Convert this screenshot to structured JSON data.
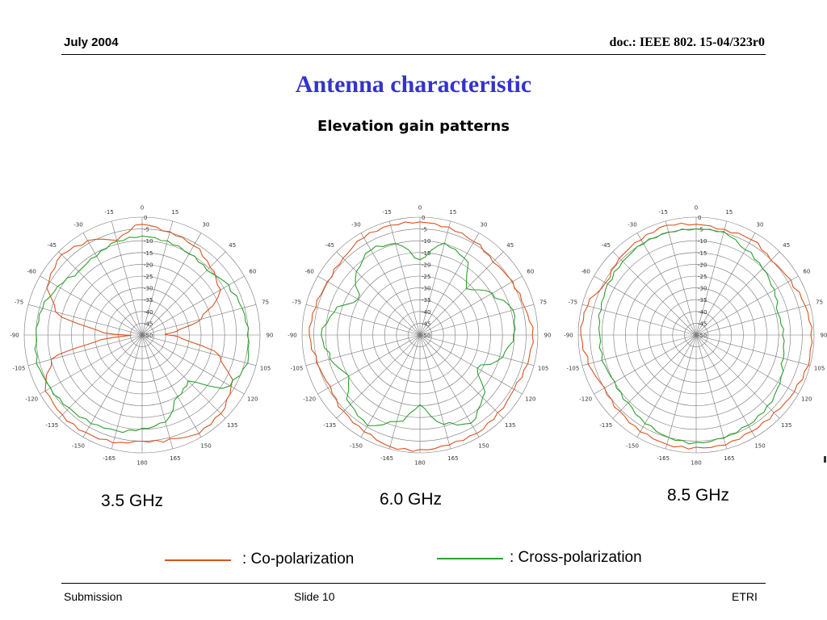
{
  "header": {
    "date": "July 2004",
    "doc": "doc.: IEEE 802. 15-04/323r0"
  },
  "title": "Antenna characteristic",
  "subtitle": "Elevation gain patterns",
  "legend": {
    "co": {
      "label": ": Co-polarization",
      "color": "#d9531e"
    },
    "cross": {
      "label": ": Cross-polarization",
      "color": "#2ca02c"
    }
  },
  "footer": {
    "left": "Submission",
    "center": "Slide 10",
    "right": "ETRI"
  },
  "chart_data": [
    {
      "type": "polar-line",
      "caption": "3.5 GHz",
      "angle_labels": [
        "0",
        "15",
        "30",
        "45",
        "60",
        "75",
        "90",
        "105",
        "120",
        "135",
        "150",
        "165",
        "180",
        "-165",
        "-150",
        "-135",
        "-120",
        "-105",
        "-90",
        "-75",
        "-60",
        "-45",
        "-30",
        "-15"
      ],
      "radial_labels": [
        "0",
        "-5",
        "-10",
        "-15",
        "-20",
        "-25",
        "-30",
        "-35",
        "-40",
        "-45",
        "-50"
      ],
      "rlim": [
        -50,
        0
      ],
      "series": [
        {
          "key": "co",
          "angles": [
            0,
            15,
            30,
            45,
            60,
            75,
            82,
            88,
            95,
            105,
            120,
            135,
            150,
            165,
            180,
            195,
            210,
            225,
            240,
            255,
            262,
            268,
            275,
            285,
            300,
            315,
            330,
            345
          ],
          "values": [
            -3,
            -5,
            -6,
            -9,
            -12,
            -24,
            -34,
            -40,
            -33,
            -16,
            -6,
            -3,
            -2,
            -4,
            -5,
            -3,
            -2,
            -2,
            -3,
            -10,
            -30,
            -45,
            -32,
            -12,
            -4,
            -2,
            -4,
            -8
          ]
        },
        {
          "key": "cross",
          "angles": [
            0,
            15,
            30,
            45,
            60,
            75,
            90,
            105,
            120,
            135,
            150,
            165,
            180,
            195,
            210,
            225,
            240,
            255,
            270,
            285,
            300,
            315,
            330,
            345
          ],
          "values": [
            -8,
            -9,
            -10,
            -11,
            -8,
            -6,
            -5,
            -4,
            -7,
            -22,
            -20,
            -12,
            -10,
            -8,
            -7,
            -6,
            -5,
            -4,
            -5,
            -6,
            -9,
            -12,
            -11,
            -9
          ]
        }
      ]
    },
    {
      "type": "polar-line",
      "caption": "6.0 GHz",
      "angle_labels": [
        "0",
        "15",
        "30",
        "45",
        "60",
        "75",
        "90",
        "105",
        "120",
        "135",
        "150",
        "165",
        "180",
        "-165",
        "-150",
        "-135",
        "-120",
        "-105",
        "-90",
        "-75",
        "-60",
        "-45",
        "-30",
        "-15"
      ],
      "radial_labels": [
        "0",
        "-5",
        "-10",
        "-15",
        "-20",
        "-25",
        "-30",
        "-35",
        "-40",
        "-45",
        "-50"
      ],
      "rlim": [
        -50,
        0
      ],
      "series": [
        {
          "key": "co",
          "angles": [
            0,
            15,
            30,
            45,
            60,
            75,
            90,
            105,
            120,
            135,
            150,
            165,
            180,
            195,
            210,
            225,
            240,
            255,
            270,
            285,
            300,
            315,
            330,
            345
          ],
          "values": [
            -2,
            -3,
            -4,
            -6,
            -5,
            -4,
            -2,
            -3,
            -4,
            -3,
            -2,
            -2,
            -1,
            -1,
            -3,
            -4,
            -6,
            -5,
            -3,
            -4,
            -5,
            -4,
            -2,
            -2
          ]
        },
        {
          "key": "cross",
          "angles": [
            0,
            15,
            30,
            45,
            60,
            75,
            90,
            105,
            120,
            135,
            150,
            165,
            180,
            195,
            210,
            225,
            240,
            255,
            270,
            285,
            300,
            315,
            330,
            345
          ],
          "values": [
            -18,
            -10,
            -12,
            -22,
            -15,
            -9,
            -10,
            -14,
            -22,
            -12,
            -7,
            -11,
            -20,
            -12,
            -6,
            -8,
            -15,
            -11,
            -8,
            -12,
            -20,
            -12,
            -8,
            -10
          ]
        }
      ]
    },
    {
      "type": "polar-line",
      "caption": "8.5 GHz",
      "angle_labels": [
        "0",
        "15",
        "30",
        "45",
        "60",
        "75",
        "90",
        "105",
        "120",
        "135",
        "150",
        "165",
        "180",
        "-165",
        "-150",
        "-135",
        "-120",
        "-105",
        "-90",
        "-75",
        "-60",
        "-45",
        "-30",
        "-15"
      ],
      "radial_labels": [
        "0",
        "-5",
        "-10",
        "-15",
        "-20",
        "-25",
        "-30",
        "-35",
        "-40",
        "-45",
        "-50"
      ],
      "rlim": [
        -50,
        0
      ],
      "series": [
        {
          "key": "co",
          "angles": [
            0,
            15,
            30,
            45,
            60,
            75,
            90,
            105,
            120,
            135,
            150,
            165,
            180,
            195,
            210,
            225,
            240,
            255,
            270,
            285,
            300,
            315,
            330,
            345
          ],
          "values": [
            -3,
            -4,
            -3,
            -5,
            -4,
            -2,
            -1,
            -1,
            -2,
            -3,
            -3,
            -2,
            -2,
            -2,
            -3,
            -4,
            -5,
            -3,
            -1,
            -2,
            -6,
            -4,
            -3,
            -2
          ]
        },
        {
          "key": "cross",
          "angles": [
            0,
            15,
            30,
            45,
            60,
            75,
            90,
            105,
            120,
            135,
            150,
            165,
            180,
            195,
            210,
            225,
            240,
            255,
            270,
            285,
            300,
            315,
            330,
            345
          ],
          "values": [
            -5,
            -5,
            -8,
            -10,
            -12,
            -14,
            -13,
            -12,
            -9,
            -7,
            -6,
            -5,
            -4,
            -5,
            -7,
            -9,
            -10,
            -9,
            -9,
            -8,
            -7,
            -6,
            -5,
            -5
          ]
        }
      ]
    }
  ]
}
